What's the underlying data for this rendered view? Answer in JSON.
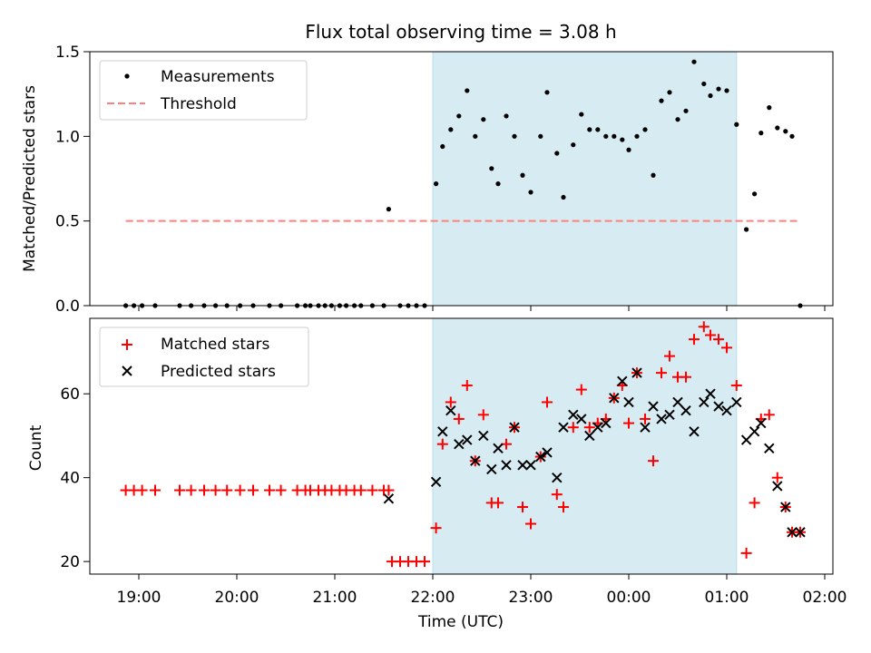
{
  "chart_data": [
    {
      "type": "scatter",
      "title": "Flux total observing time = 3.08 h",
      "xlabel": "",
      "ylabel": "Matched/Predicted stars",
      "xlim": [
        "18:30",
        "02:05"
      ],
      "ylim": [
        0,
        1.5
      ],
      "yticks": [
        0.0,
        0.5,
        1.0,
        1.5
      ],
      "ytick_labels": [
        "0.0",
        "0.5",
        "1.0",
        "1.5"
      ],
      "grid": false,
      "legend_position": "top-left",
      "highlight_span": [
        "22:00",
        "01:06"
      ],
      "threshold": {
        "name": "Threshold",
        "y": 0.5,
        "x_range": [
          "18:52",
          "01:44"
        ],
        "color": "#ff7f7f",
        "style": "dashed"
      },
      "series": [
        {
          "name": "Measurements",
          "color": "#000000",
          "marker": "dot",
          "x": [
            "18:52",
            "18:57",
            "19:02",
            "19:10",
            "19:25",
            "19:32",
            "19:40",
            "19:47",
            "19:54",
            "20:02",
            "20:10",
            "20:20",
            "20:27",
            "20:37",
            "20:42",
            "20:45",
            "20:50",
            "20:54",
            "20:58",
            "21:03",
            "21:07",
            "21:12",
            "21:16",
            "21:23",
            "21:30",
            "21:33",
            "21:40",
            "21:45",
            "21:50",
            "21:55",
            "22:02",
            "22:06",
            "22:11",
            "22:16",
            "22:21",
            "22:26",
            "22:31",
            "22:36",
            "22:40",
            "22:45",
            "22:50",
            "22:55",
            "23:00",
            "23:06",
            "23:10",
            "23:16",
            "23:20",
            "23:26",
            "23:31",
            "23:36",
            "23:41",
            "23:46",
            "23:51",
            "23:56",
            "00:00",
            "00:05",
            "00:10",
            "00:15",
            "00:20",
            "00:25",
            "00:30",
            "00:35",
            "00:40",
            "00:46",
            "00:50",
            "00:55",
            "01:00",
            "01:06",
            "01:12",
            "01:17",
            "01:21",
            "01:26",
            "01:31",
            "01:36",
            "01:40",
            "01:45"
          ],
          "y": [
            0,
            0,
            0,
            0,
            0,
            0,
            0,
            0,
            0,
            0,
            0,
            0,
            0,
            0,
            0,
            0,
            0,
            0,
            0,
            0,
            0,
            0,
            0,
            0,
            0,
            0.57,
            0,
            0,
            0,
            0,
            0.72,
            0.94,
            1.04,
            1.12,
            1.27,
            1.0,
            1.1,
            0.81,
            0.72,
            1.12,
            1.0,
            0.77,
            0.67,
            1.0,
            1.26,
            0.9,
            0.64,
            0.95,
            1.13,
            1.04,
            1.04,
            1.0,
            1.0,
            0.98,
            0.92,
            1.0,
            1.04,
            0.77,
            1.21,
            1.26,
            1.1,
            1.15,
            1.44,
            1.31,
            1.24,
            1.28,
            1.27,
            1.07,
            0.45,
            0.66,
            1.02,
            1.17,
            1.05,
            1.03,
            1.0,
            0.0
          ]
        }
      ]
    },
    {
      "type": "scatter",
      "title": "",
      "xlabel": "Time (UTC)",
      "ylabel": "Count",
      "xlim": [
        "18:30",
        "02:05"
      ],
      "ylim": [
        17,
        78
      ],
      "yticks": [
        20,
        40,
        60
      ],
      "ytick_labels": [
        "20",
        "40",
        "60"
      ],
      "xticks": [
        "19:00",
        "20:00",
        "21:00",
        "22:00",
        "23:00",
        "00:00",
        "01:00",
        "02:00"
      ],
      "grid": false,
      "legend_position": "top-left",
      "highlight_span": [
        "22:00",
        "01:06"
      ],
      "series": [
        {
          "name": "Matched stars",
          "color": "#ff0000",
          "marker": "plus",
          "x": [
            "18:52",
            "18:57",
            "19:02",
            "19:10",
            "19:25",
            "19:32",
            "19:40",
            "19:47",
            "19:54",
            "20:02",
            "20:10",
            "20:20",
            "20:27",
            "20:37",
            "20:42",
            "20:45",
            "20:50",
            "20:54",
            "20:58",
            "21:03",
            "21:07",
            "21:12",
            "21:16",
            "21:23",
            "21:30",
            "21:33",
            "21:35",
            "21:40",
            "21:45",
            "21:50",
            "21:55",
            "22:02",
            "22:06",
            "22:11",
            "22:16",
            "22:21",
            "22:26",
            "22:31",
            "22:36",
            "22:40",
            "22:45",
            "22:50",
            "22:55",
            "23:00",
            "23:06",
            "23:10",
            "23:16",
            "23:20",
            "23:26",
            "23:31",
            "23:36",
            "23:41",
            "23:46",
            "23:51",
            "23:56",
            "00:00",
            "00:05",
            "00:10",
            "00:15",
            "00:20",
            "00:25",
            "00:30",
            "00:35",
            "00:40",
            "00:46",
            "00:50",
            "00:55",
            "01:00",
            "01:06",
            "01:12",
            "01:17",
            "01:21",
            "01:26",
            "01:31",
            "01:36",
            "01:40",
            "01:45"
          ],
          "y": [
            37,
            37,
            37,
            37,
            37,
            37,
            37,
            37,
            37,
            37,
            37,
            37,
            37,
            37,
            37,
            37,
            37,
            37,
            37,
            37,
            37,
            37,
            37,
            37,
            37,
            37,
            20,
            20,
            20,
            20,
            20,
            28,
            48,
            58,
            54,
            62,
            44,
            55,
            34,
            34,
            48,
            52,
            33,
            29,
            45,
            58,
            36,
            33,
            52,
            61,
            52,
            53,
            54,
            59,
            62,
            53,
            65,
            54,
            44,
            65,
            69,
            64,
            64,
            73,
            76,
            74,
            73,
            71,
            62,
            22,
            34,
            54,
            55,
            40,
            33,
            27,
            27
          ]
        },
        {
          "name": "Predicted stars",
          "color": "#000000",
          "marker": "x",
          "x": [
            "21:33",
            "22:02",
            "22:06",
            "22:11",
            "22:16",
            "22:21",
            "22:26",
            "22:31",
            "22:36",
            "22:40",
            "22:45",
            "22:50",
            "22:55",
            "23:00",
            "23:06",
            "23:10",
            "23:16",
            "23:20",
            "23:26",
            "23:31",
            "23:36",
            "23:41",
            "23:46",
            "23:51",
            "23:56",
            "00:00",
            "00:05",
            "00:10",
            "00:15",
            "00:20",
            "00:25",
            "00:30",
            "00:35",
            "00:40",
            "00:46",
            "00:50",
            "00:55",
            "01:00",
            "01:06",
            "01:12",
            "01:17",
            "01:21",
            "01:26",
            "01:31",
            "01:36",
            "01:40",
            "01:45"
          ],
          "y": [
            35,
            39,
            51,
            56,
            48,
            49,
            44,
            50,
            42,
            47,
            43,
            52,
            43,
            43,
            45,
            46,
            40,
            52,
            55,
            54,
            50,
            52,
            53,
            59,
            63,
            58,
            65,
            52,
            57,
            54,
            55,
            58,
            56,
            51,
            58,
            60,
            57,
            56,
            58,
            49,
            51,
            53,
            47,
            38,
            33,
            27,
            27
          ]
        }
      ]
    }
  ]
}
